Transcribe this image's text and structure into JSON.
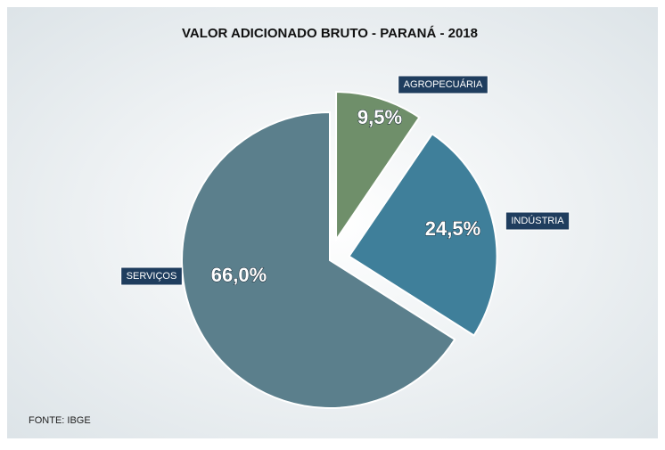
{
  "chart_data": {
    "type": "pie",
    "title": "VALOR ADICIONADO BRUTO - PARANÁ - 2018",
    "categories": [
      "AGROPECUÁRIA",
      "INDÚSTRIA",
      "SERVIÇOS"
    ],
    "values": [
      9.5,
      24.5,
      66.0
    ],
    "value_labels": [
      "9,5%",
      "24,5%",
      "66,0%"
    ],
    "colors": [
      "#6f8f6a",
      "#3f7f9a",
      "#5b7f8c"
    ],
    "source": "FONTE: IBGE"
  }
}
